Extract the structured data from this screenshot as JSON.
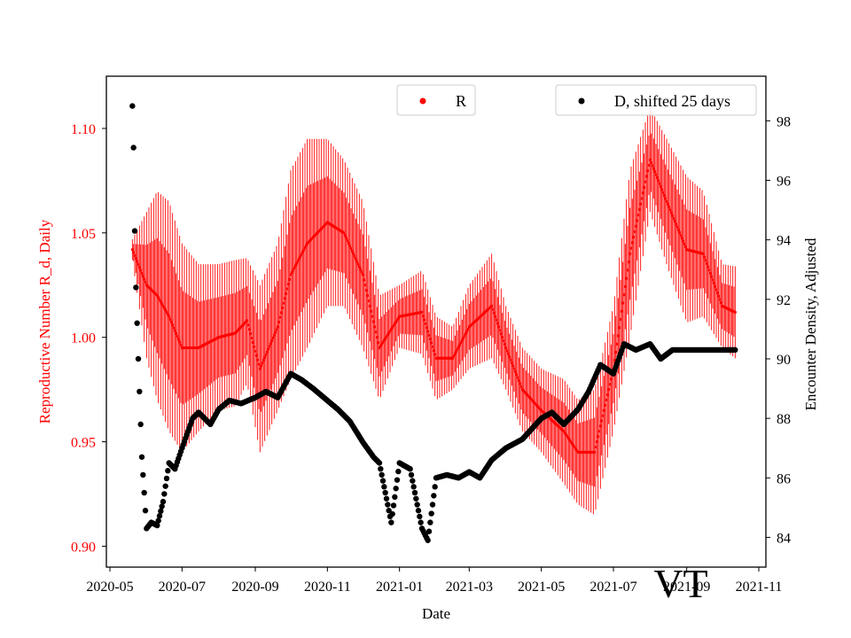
{
  "chart_data": {
    "type": "scatter",
    "xlabel": "Date",
    "ylabel_left": "Reproductive Number R_d, Daily",
    "ylabel_right": "Encounter Density, Adjusted",
    "stamp": "VT",
    "x_range": [
      "2020-04-28",
      "2021-11-07"
    ],
    "ylim_left": [
      0.89,
      1.125
    ],
    "ylim_right": [
      83.0,
      99.5
    ],
    "x_ticks": [
      "2020-05",
      "2020-07",
      "2020-09",
      "2020-11",
      "2021-01",
      "2021-03",
      "2021-05",
      "2021-07",
      "2021-09",
      "2021-11"
    ],
    "x_tick_dates": [
      "2020-05-01",
      "2020-07-01",
      "2020-09-01",
      "2020-11-01",
      "2021-01-01",
      "2021-03-01",
      "2021-05-01",
      "2021-07-01",
      "2021-09-01",
      "2021-11-01"
    ],
    "y_ticks_left": [
      "0.90",
      "0.95",
      "1.00",
      "1.05",
      "1.10"
    ],
    "y_tick_values_left": [
      0.9,
      0.95,
      1.0,
      1.05,
      1.1
    ],
    "y_ticks_right": [
      "84",
      "86",
      "88",
      "90",
      "92",
      "94",
      "96",
      "98"
    ],
    "y_tick_values_right": [
      84,
      86,
      88,
      90,
      92,
      94,
      96,
      98
    ],
    "legend": {
      "r_label": "R",
      "d_label": "D, shifted 25 days"
    },
    "colors": {
      "r": "#ff0000",
      "d": "#000000",
      "left_axis_text": "#ff0000"
    },
    "series": [
      {
        "name": "R",
        "axis": "left",
        "dates": [
          "2020-05-20",
          "2020-06-01",
          "2020-06-10",
          "2020-06-20",
          "2020-07-01",
          "2020-07-15",
          "2020-08-01",
          "2020-08-15",
          "2020-08-25",
          "2020-09-05",
          "2020-09-20",
          "2020-10-01",
          "2020-10-15",
          "2020-11-01",
          "2020-11-15",
          "2020-12-01",
          "2020-12-15",
          "2021-01-01",
          "2021-01-20",
          "2021-02-01",
          "2021-02-15",
          "2021-03-01",
          "2021-03-20",
          "2021-04-01",
          "2021-04-15",
          "2021-05-01",
          "2021-05-20",
          "2021-06-01",
          "2021-06-15",
          "2021-07-01",
          "2021-07-15",
          "2021-08-01",
          "2021-08-15",
          "2021-09-01",
          "2021-09-15",
          "2021-10-01",
          "2021-10-12"
        ],
        "values": [
          1.042,
          1.025,
          1.02,
          1.01,
          0.995,
          0.995,
          1.0,
          1.002,
          1.008,
          0.985,
          1.005,
          1.03,
          1.045,
          1.055,
          1.05,
          1.03,
          0.995,
          1.01,
          1.012,
          0.99,
          0.99,
          1.005,
          1.015,
          0.995,
          0.975,
          0.965,
          0.955,
          0.945,
          0.945,
          0.985,
          1.04,
          1.085,
          1.065,
          1.042,
          1.04,
          1.015,
          1.012
        ],
        "err": [
          0.005,
          0.035,
          0.05,
          0.055,
          0.05,
          0.04,
          0.035,
          0.035,
          0.03,
          0.04,
          0.04,
          0.05,
          0.05,
          0.04,
          0.035,
          0.035,
          0.025,
          0.015,
          0.02,
          0.02,
          0.015,
          0.02,
          0.025,
          0.02,
          0.02,
          0.02,
          0.025,
          0.025,
          0.03,
          0.03,
          0.04,
          0.025,
          0.03,
          0.035,
          0.03,
          0.02,
          0.022
        ]
      },
      {
        "name": "D, shifted 25 days",
        "axis": "right",
        "dates": [
          "2020-05-20",
          "2020-05-21",
          "2020-05-22",
          "2020-05-23",
          "2020-05-25",
          "2020-05-28",
          "2020-06-01",
          "2020-06-05",
          "2020-06-10",
          "2020-06-15",
          "2020-06-20",
          "2020-06-25",
          "2020-07-01",
          "2020-07-10",
          "2020-07-15",
          "2020-07-25",
          "2020-08-01",
          "2020-08-10",
          "2020-08-20",
          "2020-09-01",
          "2020-09-10",
          "2020-09-20",
          "2020-10-01",
          "2020-10-10",
          "2020-10-20",
          "2020-11-01",
          "2020-11-10",
          "2020-11-20",
          "2020-12-01",
          "2020-12-10",
          "2020-12-15",
          "2020-12-25",
          "2021-01-01",
          "2021-01-10",
          "2021-01-20",
          "2021-01-25",
          "2021-02-01",
          "2021-02-10",
          "2021-02-20",
          "2021-03-01",
          "2021-03-10",
          "2021-03-20",
          "2021-04-01",
          "2021-04-15",
          "2021-05-01",
          "2021-05-10",
          "2021-05-20",
          "2021-06-01",
          "2021-06-10",
          "2021-06-20",
          "2021-07-01",
          "2021-07-10",
          "2021-07-20",
          "2021-08-01",
          "2021-08-10",
          "2021-08-20",
          "2021-09-01",
          "2021-09-15",
          "2021-10-01",
          "2021-10-12"
        ],
        "values": [
          98.5,
          97.1,
          94.3,
          92.4,
          90.0,
          86.7,
          84.3,
          84.5,
          84.4,
          85.2,
          86.5,
          86.3,
          87.0,
          88.0,
          88.2,
          87.8,
          88.3,
          88.6,
          88.5,
          88.7,
          88.9,
          88.7,
          89.5,
          89.3,
          89.0,
          88.6,
          88.3,
          87.9,
          87.2,
          86.7,
          86.5,
          84.5,
          86.5,
          86.3,
          84.3,
          83.9,
          86.0,
          86.1,
          86.0,
          86.2,
          86.0,
          86.6,
          87.0,
          87.3,
          88.0,
          88.2,
          87.8,
          88.3,
          88.9,
          89.8,
          89.5,
          90.5,
          90.3,
          90.5,
          90.0,
          90.3,
          90.3,
          90.3,
          90.3,
          90.3
        ]
      }
    ]
  }
}
